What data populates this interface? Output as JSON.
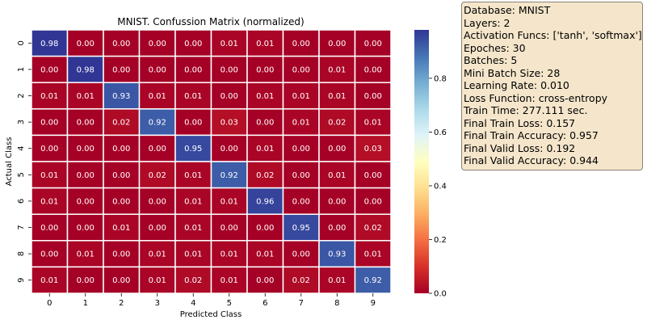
{
  "chart_data": {
    "type": "heatmap",
    "title": "MNIST. Confussion Matrix (normalized)",
    "xlabel": "Predicted Class",
    "ylabel": "Actual Class",
    "x_categories": [
      "0",
      "1",
      "2",
      "3",
      "4",
      "5",
      "6",
      "7",
      "8",
      "9"
    ],
    "y_categories": [
      "0",
      "1",
      "2",
      "3",
      "4",
      "5",
      "6",
      "7",
      "8",
      "9"
    ],
    "values": [
      [
        0.98,
        0.0,
        0.0,
        0.0,
        0.0,
        0.01,
        0.01,
        0.0,
        0.0,
        0.0
      ],
      [
        0.0,
        0.98,
        0.0,
        0.0,
        0.0,
        0.0,
        0.0,
        0.0,
        0.01,
        0.0
      ],
      [
        0.01,
        0.01,
        0.93,
        0.01,
        0.01,
        0.0,
        0.01,
        0.01,
        0.01,
        0.0
      ],
      [
        0.0,
        0.0,
        0.02,
        0.92,
        0.0,
        0.03,
        0.0,
        0.01,
        0.02,
        0.01
      ],
      [
        0.0,
        0.0,
        0.0,
        0.0,
        0.95,
        0.0,
        0.01,
        0.0,
        0.0,
        0.03
      ],
      [
        0.01,
        0.0,
        0.0,
        0.02,
        0.01,
        0.92,
        0.02,
        0.0,
        0.01,
        0.0
      ],
      [
        0.01,
        0.0,
        0.0,
        0.0,
        0.01,
        0.01,
        0.96,
        0.0,
        0.0,
        0.0
      ],
      [
        0.0,
        0.0,
        0.01,
        0.0,
        0.01,
        0.0,
        0.0,
        0.95,
        0.0,
        0.02
      ],
      [
        0.0,
        0.01,
        0.0,
        0.01,
        0.01,
        0.01,
        0.01,
        0.0,
        0.93,
        0.01
      ],
      [
        0.01,
        0.0,
        0.0,
        0.01,
        0.02,
        0.01,
        0.0,
        0.02,
        0.01,
        0.92
      ]
    ],
    "colorbar": {
      "vmin": 0.0,
      "vmax": 0.98,
      "ticks": [
        0.0,
        0.2,
        0.4,
        0.6,
        0.8
      ],
      "tick_labels": [
        "0.0",
        "0.2",
        "0.4",
        "0.6",
        "0.8"
      ],
      "colormap": "RdYlBu"
    },
    "colors": {
      "low": "#a50026",
      "high": "#313695",
      "cell_border": "#ffffff"
    }
  },
  "info_box": {
    "lines": [
      "Database: MNIST",
      "Layers: 2",
      "Activation Funcs: ['tanh', 'softmax']",
      "Epoches: 30",
      "Batches: 5",
      "Mini Batch Size: 28",
      "Learning Rate: 0.010",
      "Loss Function: cross-entropy",
      "Train Time: 277.111 sec.",
      "Final Train Loss: 0.157",
      "Final Train Accuracy: 0.957",
      "Final Valid Loss: 0.192",
      "Final Valid Accuracy: 0.944"
    ],
    "background": "#f5e6cb"
  }
}
